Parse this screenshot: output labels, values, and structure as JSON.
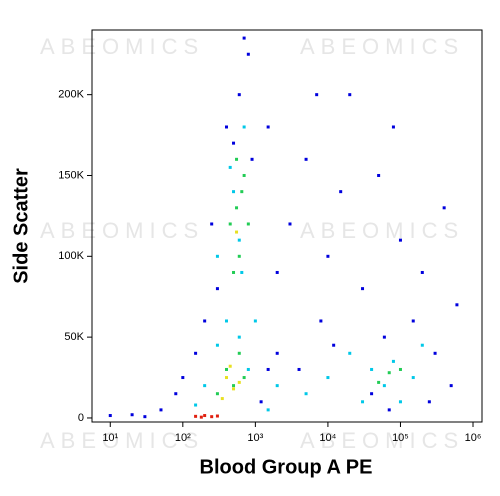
{
  "chart_data": {
    "type": "scatter",
    "watermark": "ABEOMICS",
    "xlabel": "Blood Group A PE",
    "ylabel": "Side Scatter",
    "xscale": "log",
    "xlim": [
      5.6,
      1330000
    ],
    "ylim": [
      -2500,
      240000
    ],
    "xticks": [
      {
        "value": 10,
        "label": "10¹"
      },
      {
        "value": 100,
        "label": "10²"
      },
      {
        "value": 1000,
        "label": "10³"
      },
      {
        "value": 10000,
        "label": "10⁴"
      },
      {
        "value": 100000,
        "label": "10⁵"
      },
      {
        "value": 1000000,
        "label": "10⁶"
      }
    ],
    "yticks": [
      0,
      {
        "value": 50000,
        "label": "50K"
      },
      {
        "value": 100000,
        "label": "100K"
      },
      {
        "value": 150000,
        "label": "150K"
      },
      {
        "value": 200000,
        "label": "200K"
      }
    ],
    "series": [
      {
        "color": "#0000dd",
        "x": [
          20,
          50,
          80,
          150,
          200,
          300,
          400,
          600,
          800,
          700,
          1500,
          2000,
          3000,
          5000,
          8000,
          10000,
          15000,
          20000,
          30000,
          50000,
          80000,
          100000,
          150000,
          200000,
          300000,
          500000,
          400000,
          60000,
          2000,
          1200,
          30,
          10,
          100,
          250,
          500,
          900,
          4000,
          12000,
          250000,
          70000,
          40000,
          600000,
          7000,
          1500
        ],
        "values": [
          2000,
          5000,
          15000,
          40000,
          60000,
          80000,
          180000,
          200000,
          225000,
          235000,
          30000,
          90000,
          120000,
          160000,
          60000,
          100000,
          140000,
          200000,
          80000,
          150000,
          180000,
          110000,
          60000,
          90000,
          40000,
          20000,
          130000,
          50000,
          40000,
          10000,
          800,
          1500,
          25000,
          120000,
          170000,
          160000,
          30000,
          45000,
          10000,
          5000,
          15000,
          70000,
          200000,
          180000
        ]
      },
      {
        "color": "#00c8e8",
        "x": [
          300,
          500,
          700,
          400,
          600,
          800,
          200,
          150,
          1000,
          2000,
          5000,
          10000,
          20000,
          40000,
          80000,
          150000,
          200000,
          100000,
          30000,
          60000,
          600,
          450,
          650,
          300,
          1500
        ],
        "values": [
          100000,
          140000,
          180000,
          60000,
          50000,
          30000,
          20000,
          8000,
          60000,
          20000,
          15000,
          25000,
          40000,
          30000,
          35000,
          25000,
          45000,
          10000,
          10000,
          20000,
          110000,
          155000,
          90000,
          45000,
          5000
        ]
      },
      {
        "color": "#22cc55",
        "x": [
          450,
          550,
          600,
          500,
          700,
          550,
          400,
          600,
          500,
          700,
          70000,
          100000,
          50000,
          300,
          800,
          650
        ],
        "values": [
          120000,
          130000,
          100000,
          90000,
          150000,
          160000,
          30000,
          40000,
          20000,
          25000,
          28000,
          30000,
          22000,
          15000,
          120000,
          140000
        ]
      },
      {
        "color": "#e8e020",
        "x": [
          400,
          500,
          450,
          600,
          550,
          350
        ],
        "values": [
          25000,
          18000,
          32000,
          22000,
          115000,
          12000
        ]
      },
      {
        "color": "#e02010",
        "x": [
          150,
          200,
          250,
          300,
          180
        ],
        "values": [
          1000,
          1500,
          800,
          1200,
          500
        ]
      }
    ]
  }
}
